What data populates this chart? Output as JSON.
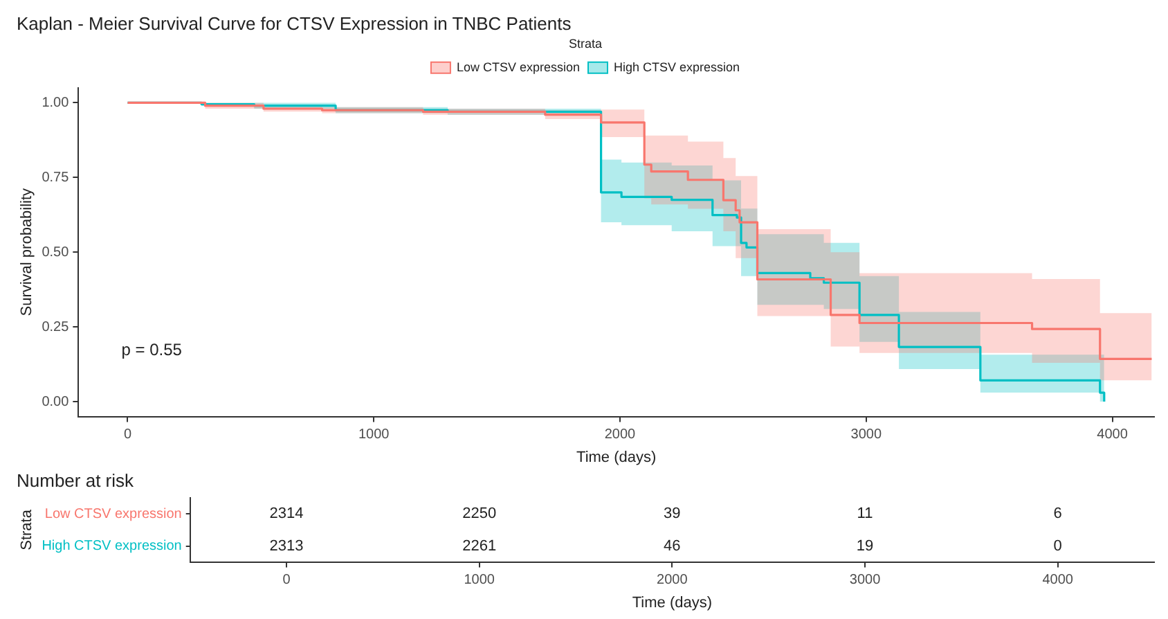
{
  "chart_data": [
    {
      "type": "step",
      "title": "Kaplan - Meier Survival Curve for CTSV Expression in TNBC Patients",
      "xlabel": "Time (days)",
      "ylabel": "Survival probability",
      "legend_title": "Strata",
      "legend": "top",
      "grid": false,
      "xlim": [
        -200,
        4170
      ],
      "xticks": [
        0,
        1000,
        2000,
        3000,
        4000
      ],
      "ylim": [
        -0.05,
        1.05
      ],
      "yticks": [
        {
          "value": 0,
          "label": "0.00"
        },
        {
          "value": 0.25,
          "label": "0.25"
        },
        {
          "value": 0.5,
          "label": "0.50"
        },
        {
          "value": 0.75,
          "label": "0.75"
        },
        {
          "value": 1,
          "label": "1.00"
        }
      ],
      "annotations": [
        "p = 0.55"
      ],
      "series": [
        {
          "name": "Low CTSV expression",
          "color": "#f8766d",
          "x": [
            0,
            315,
            552,
            790,
            1200,
            1696,
            1923,
            2099,
            2127,
            2276,
            2420,
            2470,
            2486,
            2558,
            2856,
            2973,
            3674,
            3950,
            4160
          ],
          "values": [
            1.0,
            0.99,
            0.98,
            0.975,
            0.97,
            0.96,
            0.934,
            0.793,
            0.77,
            0.742,
            0.674,
            0.64,
            0.6,
            0.409,
            0.29,
            0.263,
            0.243,
            0.143,
            0.143
          ],
          "upper": [
            1.0,
            1.0,
            0.99,
            0.985,
            0.98,
            0.975,
            0.977,
            0.89,
            0.89,
            0.87,
            0.815,
            0.755,
            0.755,
            0.577,
            0.5,
            0.43,
            0.41,
            0.296,
            0.296
          ],
          "lower": [
            1.0,
            0.98,
            0.97,
            0.965,
            0.96,
            0.945,
            0.885,
            0.68,
            0.66,
            0.645,
            0.57,
            0.48,
            0.48,
            0.286,
            0.184,
            0.163,
            0.13,
            0.071,
            0.071
          ]
        },
        {
          "name": "High CTSV expression",
          "color": "#00bfc4",
          "x": [
            0,
            300,
            514,
            845,
            1300,
            1923,
            2006,
            2210,
            2376,
            2475,
            2492,
            2514,
            2558,
            2773,
            2828,
            2973,
            3133,
            3464,
            3950,
            3967
          ],
          "values": [
            1.0,
            0.995,
            0.99,
            0.975,
            0.97,
            0.7,
            0.685,
            0.675,
            0.624,
            0.616,
            0.531,
            0.516,
            0.43,
            0.413,
            0.398,
            0.29,
            0.183,
            0.071,
            0.03,
            0.0
          ],
          "upper": [
            1.0,
            1.0,
            1.0,
            0.985,
            0.98,
            0.81,
            0.8,
            0.79,
            0.74,
            0.74,
            0.646,
            0.646,
            0.56,
            0.56,
            0.531,
            0.42,
            0.3,
            0.157,
            0.157,
            0.157
          ],
          "lower": [
            1.0,
            0.99,
            0.98,
            0.965,
            0.96,
            0.6,
            0.59,
            0.57,
            0.52,
            0.52,
            0.42,
            0.42,
            0.324,
            0.324,
            0.31,
            0.2,
            0.109,
            0.03,
            0.0,
            0.0
          ]
        }
      ]
    },
    {
      "type": "heatmap",
      "title": "Number at risk",
      "xlabel": "Time (days)",
      "ylabel": "Strata",
      "data_labels": true,
      "categories": [
        "0",
        "1000",
        "2000",
        "3000",
        "4000"
      ],
      "y_categories": [
        "Low CTSV expression",
        "High CTSV expression"
      ],
      "colors": [
        "#f8766d",
        "#00bfc4"
      ],
      "cells": [
        [
          2314,
          2250,
          39,
          11,
          6
        ],
        [
          2313,
          2261,
          46,
          19,
          0
        ]
      ]
    }
  ]
}
